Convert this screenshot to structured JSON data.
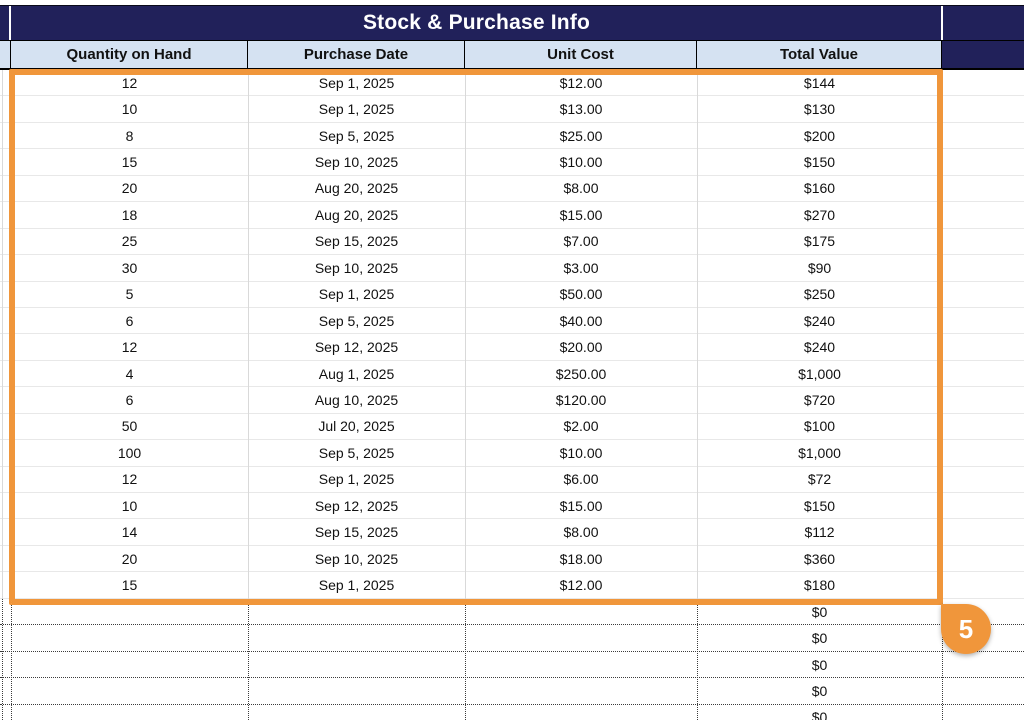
{
  "title": "Stock & Purchase Info",
  "header": {
    "columns": [
      "Quantity on Hand",
      "Purchase Date",
      "Unit Cost",
      "Total Value"
    ]
  },
  "table": {
    "rows": [
      [
        "12",
        "Sep 1, 2025",
        "$12.00",
        "$144"
      ],
      [
        "10",
        "Sep 1, 2025",
        "$13.00",
        "$130"
      ],
      [
        "8",
        "Sep 5, 2025",
        "$25.00",
        "$200"
      ],
      [
        "15",
        "Sep 10, 2025",
        "$10.00",
        "$150"
      ],
      [
        "20",
        "Aug 20, 2025",
        "$8.00",
        "$160"
      ],
      [
        "18",
        "Aug 20, 2025",
        "$15.00",
        "$270"
      ],
      [
        "25",
        "Sep 15, 2025",
        "$7.00",
        "$175"
      ],
      [
        "30",
        "Sep 10, 2025",
        "$3.00",
        "$90"
      ],
      [
        "5",
        "Sep 1, 2025",
        "$50.00",
        "$250"
      ],
      [
        "6",
        "Sep 5, 2025",
        "$40.00",
        "$240"
      ],
      [
        "12",
        "Sep 12, 2025",
        "$20.00",
        "$240"
      ],
      [
        "4",
        "Aug 1, 2025",
        "$250.00",
        "$1,000"
      ],
      [
        "6",
        "Aug 10, 2025",
        "$120.00",
        "$720"
      ],
      [
        "50",
        "Jul 20, 2025",
        "$2.00",
        "$100"
      ],
      [
        "100",
        "Sep 5, 2025",
        "$10.00",
        "$1,000"
      ],
      [
        "12",
        "Sep 1, 2025",
        "$6.00",
        "$72"
      ],
      [
        "10",
        "Sep 12, 2025",
        "$15.00",
        "$150"
      ],
      [
        "14",
        "Sep 15, 2025",
        "$8.00",
        "$112"
      ],
      [
        "20",
        "Sep 10, 2025",
        "$18.00",
        "$360"
      ],
      [
        "15",
        "Sep 1, 2025",
        "$12.00",
        "$180"
      ]
    ],
    "empty_rows": {
      "count": 5,
      "total_value": "$0"
    }
  },
  "selection": {
    "badge_count": "5"
  },
  "colors": {
    "navy": "#21215a",
    "header_blue": "#d5e2f2",
    "selection_orange": "#f0963b"
  }
}
